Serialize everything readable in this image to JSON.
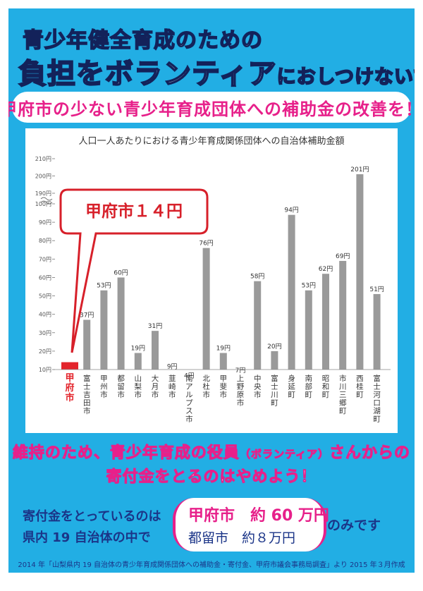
{
  "poster": {
    "title_line1": "青少年健全育成のための",
    "title_line2_a": "負担を",
    "title_line2_b": "ボランティア",
    "title_line2_c": "におしつけないで",
    "banner": "甲府市の少ない青少年育成団体への補助金の改善を！",
    "message_line1_a": "維持のため、青少年育成の役員",
    "message_line1_b": "（ボランティア）",
    "message_line1_c": "さんからの",
    "message_line2": "寄付金をとるのはやめよう！",
    "note_line1": "寄付金をとっているのは",
    "note_line2": "県内 19 自治体の中で",
    "result_line1": "甲府市　約 60 万円",
    "result_line2": "都留市　約８万円",
    "result_suffix": "のみです",
    "footer": "2014 年「山梨県内 19 自治体の青少年育成関係団体への補助金・寄付金、甲府市議会事務局調査」より 2015 年３月作成"
  },
  "colors": {
    "background": "#22aee4",
    "accent": "#e7208a",
    "highlight_bar": "#e3242b",
    "bar": "#9a9a9a",
    "navy": "#1b3588"
  },
  "chart_data": {
    "type": "bar",
    "title": "人口一人あたりにおける青少年育成関係団体への自治体補助金額",
    "callout": "甲府市１４円",
    "highlight": "甲府市",
    "categories": [
      "甲府市",
      "富士吉田市",
      "甲州市",
      "都留市",
      "山梨市",
      "大月市",
      "韮崎市",
      "南アルプス市",
      "北杜市",
      "甲斐市",
      "上野原市",
      "中央市",
      "富士川町",
      "身延町",
      "南部町",
      "昭和町",
      "市川三郷町",
      "西桂町",
      "富士河口湖町"
    ],
    "values": [
      14,
      37,
      53,
      60,
      19,
      31,
      9,
      4,
      76,
      19,
      7,
      58,
      20,
      94,
      53,
      62,
      69,
      201,
      51
    ],
    "value_labels": [
      "",
      "37円",
      "53円",
      "60円",
      "19円",
      "31円",
      "9円",
      "4円",
      "76円",
      "19円",
      "7円",
      "58円",
      "20円",
      "94円",
      "53円",
      "62円",
      "69円",
      "201円",
      "51円"
    ],
    "y_ticks": [
      "10円",
      "20円",
      "30円",
      "40円",
      "50円",
      "60円",
      "70円",
      "80円",
      "90円",
      "100円",
      "190円",
      "200円",
      "210円"
    ],
    "ylim": [
      10,
      210
    ],
    "axis_break": "100–190",
    "grid": false
  }
}
